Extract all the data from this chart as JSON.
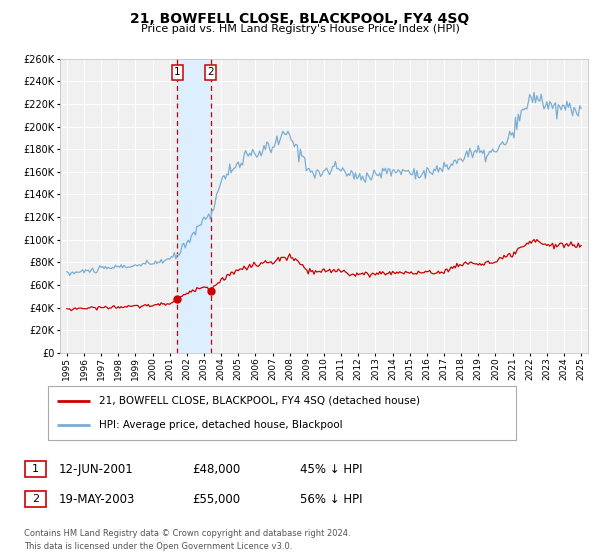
{
  "title": "21, BOWFELL CLOSE, BLACKPOOL, FY4 4SQ",
  "subtitle": "Price paid vs. HM Land Registry's House Price Index (HPI)",
  "legend_line1": "21, BOWFELL CLOSE, BLACKPOOL, FY4 4SQ (detached house)",
  "legend_line2": "HPI: Average price, detached house, Blackpool",
  "footnote1": "Contains HM Land Registry data © Crown copyright and database right 2024.",
  "footnote2": "This data is licensed under the Open Government Licence v3.0.",
  "sale1_label": "1",
  "sale1_date": "12-JUN-2001",
  "sale1_price": "£48,000",
  "sale1_hpi": "45% ↓ HPI",
  "sale2_label": "2",
  "sale2_date": "19-MAY-2003",
  "sale2_price": "£55,000",
  "sale2_hpi": "56% ↓ HPI",
  "sale1_year": 2001.45,
  "sale2_year": 2003.38,
  "sale1_price_val": 48000,
  "sale2_price_val": 55000,
  "red_color": "#cc0000",
  "blue_color": "#7aadd4",
  "shaded_color": "#ddeeff",
  "background_color": "#f0f0f0",
  "grid_color": "#ffffff",
  "ylim": [
    0,
    260000
  ],
  "xlim_start": 1994.6,
  "xlim_end": 2025.4,
  "yticks": [
    0,
    20000,
    40000,
    60000,
    80000,
    100000,
    120000,
    140000,
    160000,
    180000,
    200000,
    220000,
    240000,
    260000
  ],
  "xticks": [
    1995,
    1996,
    1997,
    1998,
    1999,
    2000,
    2001,
    2002,
    2003,
    2004,
    2005,
    2006,
    2007,
    2008,
    2009,
    2010,
    2011,
    2012,
    2013,
    2014,
    2015,
    2016,
    2017,
    2018,
    2019,
    2020,
    2021,
    2022,
    2023,
    2024,
    2025
  ],
  "hpi_keypoints": [
    [
      1995.0,
      70000
    ],
    [
      1996.0,
      72000
    ],
    [
      1997.0,
      74000
    ],
    [
      1998.0,
      76000
    ],
    [
      1999.0,
      77000
    ],
    [
      2000.0,
      79000
    ],
    [
      2001.0,
      83000
    ],
    [
      2001.45,
      86000
    ],
    [
      2002.0,
      98000
    ],
    [
      2003.0,
      118000
    ],
    [
      2003.38,
      122000
    ],
    [
      2004.0,
      152000
    ],
    [
      2005.0,
      168000
    ],
    [
      2006.0,
      176000
    ],
    [
      2007.0,
      182000
    ],
    [
      2007.6,
      192000
    ],
    [
      2008.0,
      191000
    ],
    [
      2008.8,
      172000
    ],
    [
      2009.3,
      160000
    ],
    [
      2009.8,
      158000
    ],
    [
      2010.5,
      163000
    ],
    [
      2011.0,
      162000
    ],
    [
      2011.5,
      158000
    ],
    [
      2012.0,
      155000
    ],
    [
      2013.0,
      158000
    ],
    [
      2014.0,
      161000
    ],
    [
      2015.0,
      160000
    ],
    [
      2016.0,
      159000
    ],
    [
      2017.0,
      163000
    ],
    [
      2018.0,
      172000
    ],
    [
      2018.5,
      177000
    ],
    [
      2019.0,
      176000
    ],
    [
      2020.0,
      177000
    ],
    [
      2021.0,
      193000
    ],
    [
      2021.5,
      210000
    ],
    [
      2022.0,
      224000
    ],
    [
      2022.5,
      227000
    ],
    [
      2023.0,
      219000
    ],
    [
      2023.5,
      214000
    ],
    [
      2024.0,
      217000
    ],
    [
      2024.5,
      216000
    ],
    [
      2025.0,
      216000
    ]
  ],
  "red_keypoints": [
    [
      1995.0,
      38500
    ],
    [
      1996.0,
      39500
    ],
    [
      1997.0,
      40000
    ],
    [
      1998.0,
      40500
    ],
    [
      1999.0,
      41000
    ],
    [
      2000.0,
      42000
    ],
    [
      2001.0,
      43500
    ],
    [
      2001.45,
      48000
    ],
    [
      2002.0,
      52000
    ],
    [
      2003.0,
      60000
    ],
    [
      2003.38,
      55000
    ],
    [
      2004.0,
      65000
    ],
    [
      2005.0,
      73000
    ],
    [
      2006.0,
      78000
    ],
    [
      2007.0,
      80000
    ],
    [
      2007.5,
      83000
    ],
    [
      2008.0,
      85000
    ],
    [
      2008.5,
      80000
    ],
    [
      2009.0,
      73000
    ],
    [
      2009.5,
      71000
    ],
    [
      2010.0,
      72000
    ],
    [
      2011.0,
      73000
    ],
    [
      2011.5,
      70000
    ],
    [
      2012.0,
      69000
    ],
    [
      2013.0,
      70000
    ],
    [
      2014.0,
      71000
    ],
    [
      2015.0,
      71000
    ],
    [
      2016.0,
      70500
    ],
    [
      2017.0,
      72000
    ],
    [
      2017.5,
      75000
    ],
    [
      2018.0,
      78000
    ],
    [
      2018.5,
      80000
    ],
    [
      2019.0,
      78500
    ],
    [
      2020.0,
      80000
    ],
    [
      2021.0,
      87000
    ],
    [
      2021.5,
      92000
    ],
    [
      2022.0,
      97000
    ],
    [
      2022.5,
      99000
    ],
    [
      2023.0,
      96000
    ],
    [
      2023.5,
      94000
    ],
    [
      2024.0,
      96000
    ],
    [
      2024.5,
      95000
    ],
    [
      2025.0,
      95000
    ]
  ]
}
